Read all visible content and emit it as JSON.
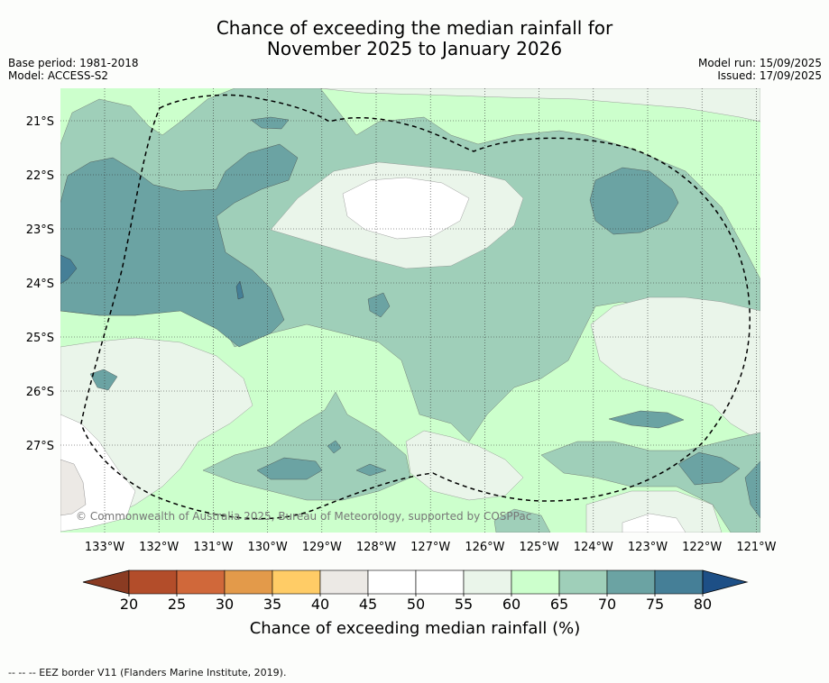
{
  "title": {
    "line1": "Chance of exceeding the median rainfall for",
    "line2": "November 2025 to January 2026"
  },
  "meta": {
    "base_period": "Base period: 1981-2018",
    "model": "Model: ACCESS-S2",
    "model_run": "Model run: 15/09/2025",
    "issued": "Issued: 17/09/2025"
  },
  "map": {
    "lon_labels": [
      "133°W",
      "132°W",
      "131°W",
      "130°W",
      "129°W",
      "128°W",
      "127°W",
      "126°W",
      "125°W",
      "124°W",
      "123°W",
      "122°W",
      "121°W"
    ],
    "lat_labels": [
      "21°S",
      "22°S",
      "23°S",
      "24°S",
      "25°S",
      "26°S",
      "27°S"
    ],
    "copyright": "© Commonwealth of Australia 2025, Bureau of Meteorology, supported by COSPPac",
    "fill_colors": {
      "c45_50": "#ffffff",
      "c55_60": "#eaf5ea",
      "c60_65": "#ccffcc",
      "c65_70": "#9fcfb9",
      "c70_75": "#6ba3a3",
      "c75_80": "#457f97",
      "c40_45": "#ece9e5"
    }
  },
  "colorbar": {
    "ticks": [
      "20",
      "25",
      "30",
      "35",
      "40",
      "45",
      "50",
      "55",
      "60",
      "65",
      "70",
      "75",
      "80"
    ],
    "colors": [
      "#b34d2a",
      "#d0683a",
      "#e39a4a",
      "#ffcc66",
      "#ece9e5",
      "#ffffff",
      "#ffffff",
      "#eaf5ea",
      "#ccffcc",
      "#9fcfb9",
      "#6ba3a3",
      "#457f97"
    ],
    "low_extend_color": "#8a3b22",
    "high_extend_color": "#1d4f86",
    "label": "Chance of exceeding median rainfall (%)"
  },
  "footer": {
    "legend_text": "--  --  -- EEZ border V11 (Flanders Marine Institute, 2019)."
  }
}
